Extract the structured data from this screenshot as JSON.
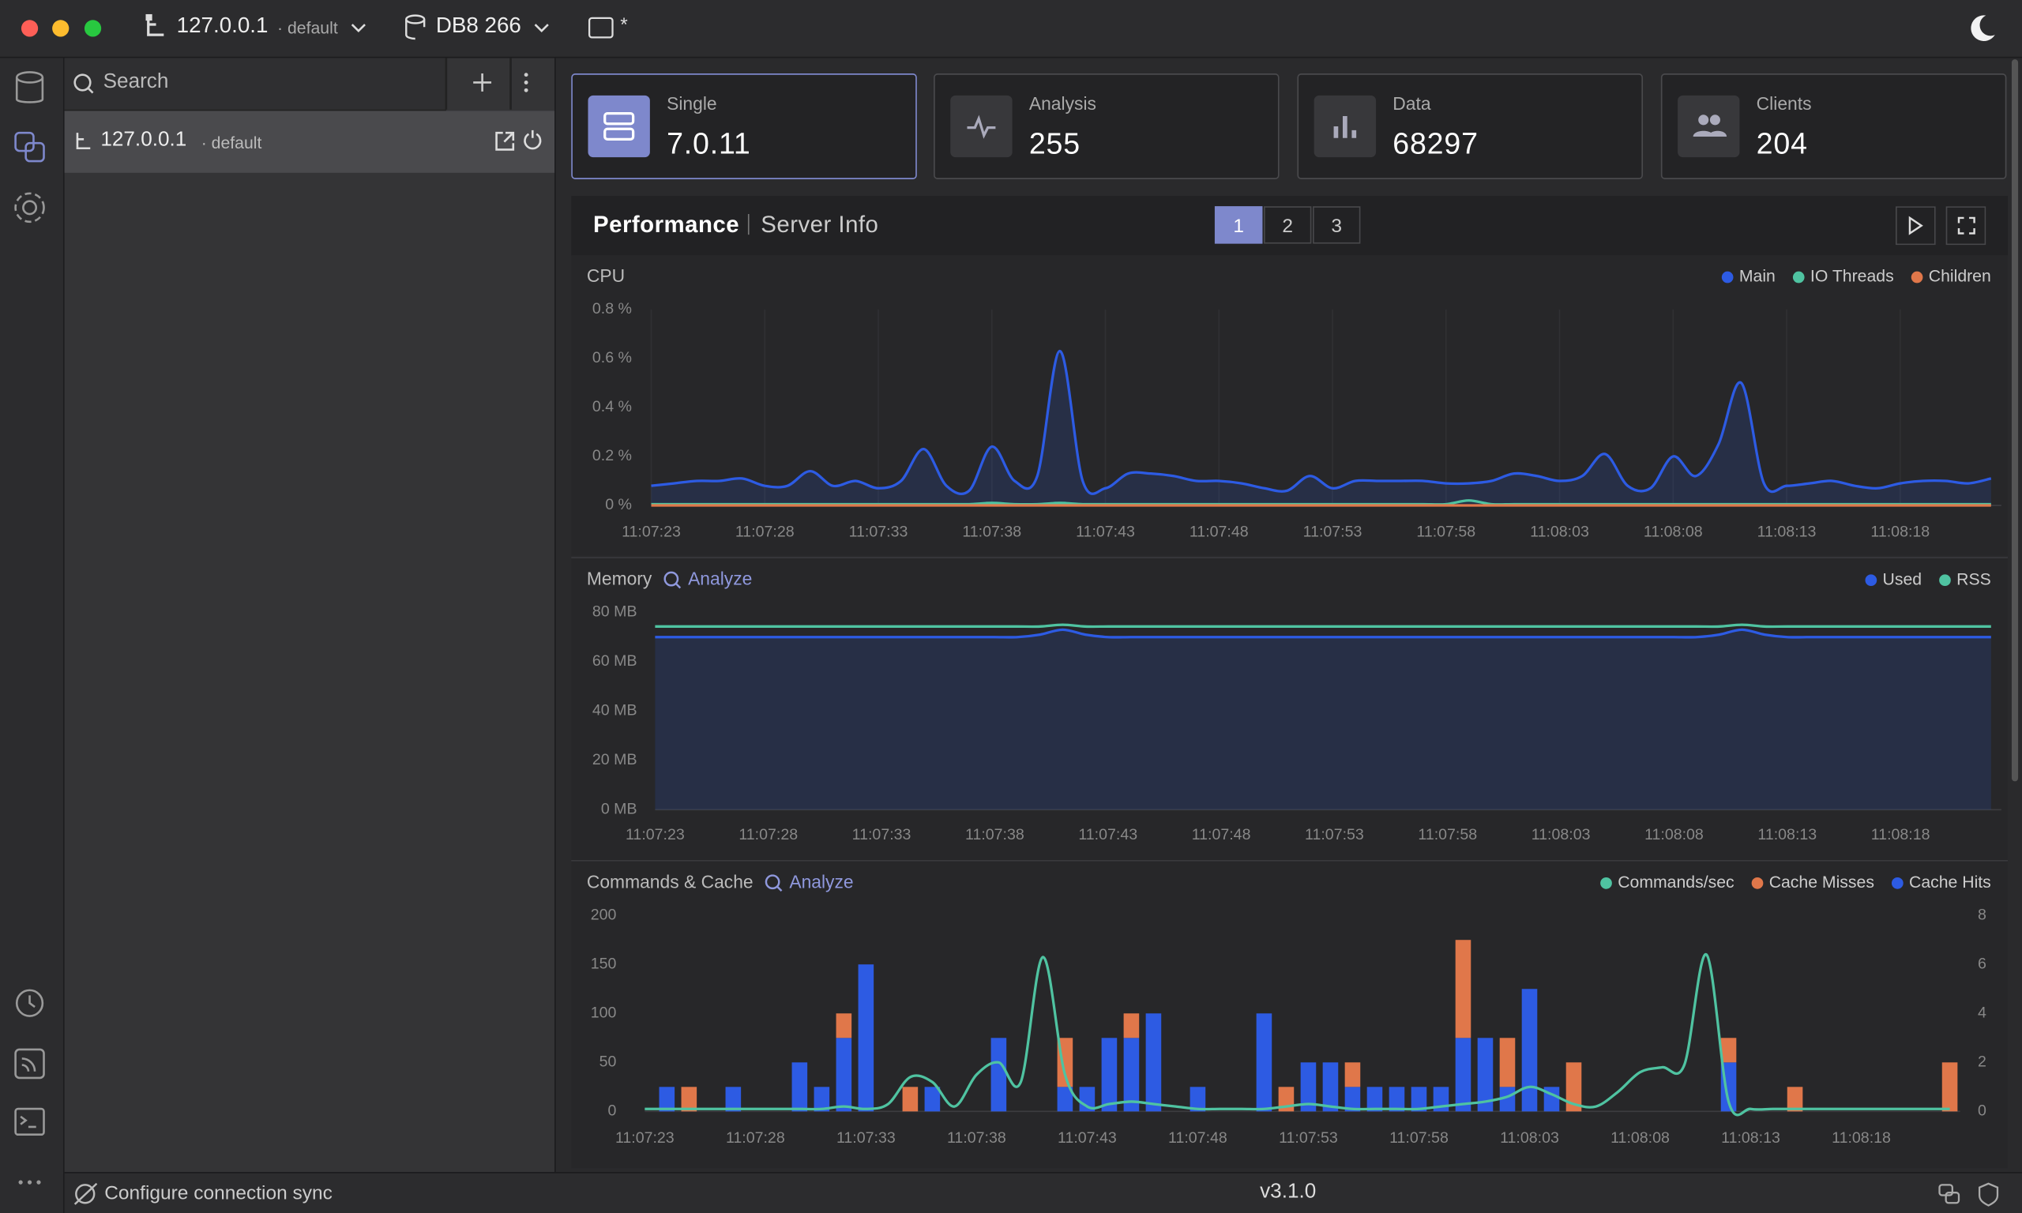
{
  "titlebar": {
    "host": "127.0.0.1",
    "host_db": "· default",
    "database": "DB8 266",
    "marker": "*"
  },
  "sidebar": {
    "search": "Search",
    "connections": [
      {
        "host": "127.0.0.1",
        "db": "· default"
      }
    ]
  },
  "cards": [
    {
      "label": "Single",
      "value": "7.0.11"
    },
    {
      "label": "Analysis",
      "value": 255
    },
    {
      "label": "Data",
      "value": 68297
    },
    {
      "label": "Clients",
      "value": 204
    }
  ],
  "tabs": [
    "Performance",
    "Server Info"
  ],
  "pages": [
    "1",
    "2",
    "3"
  ],
  "charts": [
    {
      "type": "line",
      "title": "CPU",
      "categories": [
        "11:07:23",
        null,
        null,
        null,
        null,
        "11:07:28",
        null,
        null,
        null,
        null,
        "11:07:33",
        null,
        null,
        null,
        null,
        "11:07:38",
        null,
        null,
        null,
        null,
        "11:07:43",
        null,
        null,
        null,
        null,
        "11:07:48",
        null,
        null,
        null,
        null,
        "11:07:53",
        null,
        null,
        null,
        null,
        "11:07:58",
        null,
        null,
        null,
        null,
        "11:08:03",
        null,
        null,
        null,
        null,
        "11:08:08",
        null,
        null,
        null,
        null,
        "11:08:13",
        null,
        null,
        null,
        null,
        "11:08:18",
        null,
        null,
        null,
        null
      ],
      "series": [
        {
          "name": "Main",
          "color": "#2d5be3",
          "values": [
            0.08,
            0.09,
            0.1,
            0.1,
            0.11,
            0.08,
            0.08,
            0.14,
            0.08,
            0.1,
            0.07,
            0.1,
            0.23,
            0.08,
            0.06,
            0.24,
            0.1,
            0.12,
            0.63,
            0.1,
            0.07,
            0.13,
            0.13,
            0.12,
            0.1,
            0.1,
            0.09,
            0.07,
            0.06,
            0.12,
            0.07,
            0.1,
            0.1,
            0.1,
            0.1,
            0.09,
            0.09,
            0.1,
            0.13,
            0.12,
            0.1,
            0.12,
            0.21,
            0.08,
            0.07,
            0.2,
            0.12,
            0.25,
            0.5,
            0.09,
            0.08,
            0.09,
            0.1,
            0.08,
            0.07,
            0.09,
            0.1,
            0.1,
            0.09,
            0.11
          ]
        },
        {
          "name": "IO Threads",
          "color": "#4fc3a1",
          "values": [
            0.005,
            0.005,
            0.005,
            0.005,
            0.005,
            0.005,
            0.005,
            0.005,
            0.005,
            0.005,
            0.005,
            0.005,
            0.005,
            0.005,
            0.005,
            0.01,
            0.005,
            0.005,
            0.01,
            0.005,
            0.005,
            0.005,
            0.005,
            0.005,
            0.005,
            0.005,
            0.005,
            0.005,
            0.005,
            0.005,
            0.005,
            0.005,
            0.005,
            0.005,
            0.005,
            0.005,
            0.02,
            0.005,
            0.005,
            0.005,
            0.005,
            0.005,
            0.005,
            0.005,
            0.005,
            0.005,
            0.005,
            0.005,
            0.005,
            0.005,
            0.005,
            0.005,
            0.005,
            0.005,
            0.005,
            0.005,
            0.005,
            0.005,
            0.005,
            0.005
          ]
        },
        {
          "name": "Children",
          "color": "#e0774a",
          "values": [
            0,
            0,
            0,
            0,
            0,
            0,
            0,
            0,
            0,
            0,
            0,
            0,
            0,
            0,
            0,
            0,
            0,
            0,
            0,
            0,
            0,
            0,
            0,
            0,
            0,
            0,
            0,
            0,
            0,
            0,
            0,
            0,
            0,
            0,
            0,
            0,
            0,
            0,
            0,
            0,
            0,
            0,
            0,
            0,
            0,
            0,
            0,
            0,
            0,
            0,
            0,
            0,
            0,
            0,
            0,
            0,
            0,
            0,
            0,
            0
          ]
        }
      ],
      "ylim": [
        0,
        0.8
      ],
      "yticks": [
        {
          "value": 0,
          "label": "0 %"
        },
        {
          "value": 0.2,
          "label": "0.2 %"
        },
        {
          "value": 0.4,
          "label": "0.4 %"
        },
        {
          "value": 0.6,
          "label": "0.6 %"
        },
        {
          "value": 0.8,
          "label": "0.8 %"
        }
      ],
      "area": true,
      "grid": true,
      "legend": "top-right"
    },
    {
      "type": "line",
      "title": "Memory",
      "action": "Analyze",
      "categories": [
        "11:07:23",
        null,
        null,
        null,
        null,
        "11:07:28",
        null,
        null,
        null,
        null,
        "11:07:33",
        null,
        null,
        null,
        null,
        "11:07:38",
        null,
        null,
        null,
        null,
        "11:07:43",
        null,
        null,
        null,
        null,
        "11:07:48",
        null,
        null,
        null,
        null,
        "11:07:53",
        null,
        null,
        null,
        null,
        "11:07:58",
        null,
        null,
        null,
        null,
        "11:08:03",
        null,
        null,
        null,
        null,
        "11:08:08",
        null,
        null,
        null,
        null,
        "11:08:13",
        null,
        null,
        null,
        null,
        "11:08:18",
        null,
        null,
        null,
        null
      ],
      "series": [
        {
          "name": "Used",
          "color": "#2d5be3",
          "values": [
            70,
            70,
            70,
            70,
            70,
            70,
            70,
            70,
            70,
            70,
            70,
            70,
            70,
            70,
            70,
            70,
            70,
            71,
            73,
            71,
            70,
            70,
            70,
            70,
            70,
            70,
            70,
            70,
            70,
            70,
            70,
            70,
            70,
            70,
            70,
            70,
            70,
            70,
            70,
            70,
            70,
            70,
            70,
            70,
            70,
            70,
            70,
            71,
            73,
            71,
            70,
            70,
            70,
            70,
            70,
            70,
            70,
            70,
            70,
            70
          ]
        },
        {
          "name": "RSS",
          "color": "#4fc3a1",
          "values": [
            74.3,
            74.3,
            74.3,
            74.3,
            74.3,
            74.3,
            74.3,
            74.3,
            74.3,
            74.3,
            74.3,
            74.3,
            74.3,
            74.3,
            74.3,
            74.3,
            74.3,
            74.3,
            75,
            74.3,
            74.3,
            74.3,
            74.3,
            74.3,
            74.3,
            74.3,
            74.3,
            74.3,
            74.3,
            74.3,
            74.3,
            74.3,
            74.3,
            74.3,
            74.3,
            74.3,
            74.3,
            74.3,
            74.3,
            74.3,
            74.3,
            74.3,
            74.3,
            74.3,
            74.3,
            74.3,
            74.3,
            74.3,
            75,
            74.3,
            74.3,
            74.3,
            74.3,
            74.3,
            74.3,
            74.3,
            74.3,
            74.3,
            74.3,
            74.3
          ]
        }
      ],
      "ylim": [
        0,
        80
      ],
      "yticks": [
        {
          "value": 0,
          "label": "0 MB"
        },
        {
          "value": 20,
          "label": "20 MB"
        },
        {
          "value": 40,
          "label": "40 MB"
        },
        {
          "value": 60,
          "label": "60 MB"
        },
        {
          "value": 80,
          "label": "80 MB"
        }
      ],
      "area": true,
      "legend": "top-right"
    },
    {
      "type": "combo",
      "title": "Commands & Cache",
      "action": "Analyze",
      "stacked": true,
      "categories": [
        "11:07:23",
        null,
        null,
        null,
        null,
        "11:07:28",
        null,
        null,
        null,
        null,
        "11:07:33",
        null,
        null,
        null,
        null,
        "11:07:38",
        null,
        null,
        null,
        null,
        "11:07:43",
        null,
        null,
        null,
        null,
        "11:07:48",
        null,
        null,
        null,
        null,
        "11:07:53",
        null,
        null,
        null,
        null,
        "11:07:58",
        null,
        null,
        null,
        null,
        "11:08:03",
        null,
        null,
        null,
        null,
        "11:08:08",
        null,
        null,
        null,
        null,
        "11:08:13",
        null,
        null,
        null,
        null,
        "11:08:18",
        null,
        null,
        null,
        null
      ],
      "series": [
        {
          "name": "Commands/sec",
          "color": "#4fc3a1",
          "kind": "line",
          "axis": "y2",
          "values": [
            0.1,
            0.1,
            0.1,
            0.1,
            0.1,
            0.1,
            0.1,
            0.1,
            0.1,
            0.2,
            0.1,
            0.3,
            1.4,
            1.2,
            0.2,
            1.5,
            2.0,
            1.2,
            6.3,
            1.5,
            0.2,
            0.3,
            0.4,
            0.3,
            0.2,
            0.1,
            0.1,
            0.1,
            0.1,
            0.2,
            0.3,
            0.2,
            0.1,
            0.1,
            0.1,
            0.1,
            0.2,
            0.3,
            0.4,
            0.6,
            1.0,
            0.7,
            0.3,
            0.2,
            0.8,
            1.6,
            1.8,
            1.9,
            6.4,
            0.4,
            0.1,
            0.1,
            0.1,
            0.1,
            0.1,
            0.1,
            0.1,
            0.1,
            0.1,
            0.1
          ]
        },
        {
          "name": "Cache Misses",
          "color": "#e0774a",
          "kind": "bar",
          "values": [
            0,
            0,
            25,
            0,
            0,
            0,
            0,
            0,
            0,
            25,
            0,
            0,
            25,
            0,
            0,
            0,
            0,
            0,
            0,
            50,
            0,
            0,
            25,
            0,
            0,
            0,
            0,
            0,
            0,
            25,
            0,
            0,
            25,
            0,
            0,
            0,
            0,
            100,
            0,
            50,
            0,
            0,
            50,
            0,
            0,
            0,
            0,
            0,
            0,
            25,
            0,
            0,
            25,
            0,
            0,
            0,
            0,
            0,
            0,
            50
          ]
        },
        {
          "name": "Cache Hits",
          "color": "#2d5be3",
          "kind": "bar",
          "values": [
            0,
            25,
            0,
            0,
            25,
            0,
            0,
            50,
            25,
            75,
            150,
            0,
            0,
            25,
            0,
            0,
            75,
            0,
            0,
            25,
            25,
            75,
            75,
            100,
            0,
            25,
            0,
            0,
            100,
            0,
            50,
            50,
            25,
            25,
            25,
            25,
            25,
            75,
            75,
            25,
            125,
            25,
            0,
            0,
            0,
            0,
            0,
            0,
            0,
            50,
            0,
            0,
            0,
            0,
            0,
            0,
            0,
            0,
            0,
            0
          ]
        }
      ],
      "ylim": [
        0,
        200
      ],
      "yticks": [
        0,
        50,
        100,
        150,
        200
      ],
      "y2lim": [
        0,
        8
      ],
      "y2ticks": [
        0,
        2,
        4,
        6,
        8
      ],
      "legend": "top-right"
    }
  ],
  "footer": {
    "sync": "Configure connection sync",
    "version": "v3.1.0"
  }
}
